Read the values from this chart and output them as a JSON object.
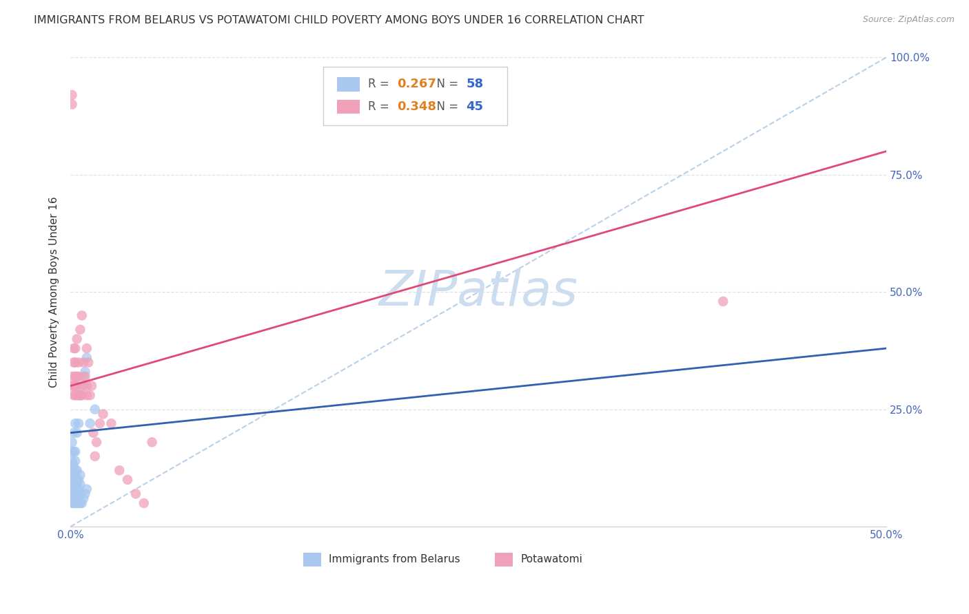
{
  "title": "IMMIGRANTS FROM BELARUS VS POTAWATOMI CHILD POVERTY AMONG BOYS UNDER 16 CORRELATION CHART",
  "source": "Source: ZipAtlas.com",
  "ylabel": "Child Poverty Among Boys Under 16",
  "xlim": [
    0.0,
    0.5
  ],
  "ylim": [
    0.0,
    1.0
  ],
  "x_ticks": [
    0.0,
    0.1,
    0.2,
    0.3,
    0.4,
    0.5
  ],
  "x_tick_labels": [
    "0.0%",
    "",
    "",
    "",
    "",
    "50.0%"
  ],
  "y_ticks": [
    0.0,
    0.25,
    0.5,
    0.75,
    1.0
  ],
  "y_tick_labels_right": [
    "",
    "25.0%",
    "50.0%",
    "75.0%",
    "100.0%"
  ],
  "series1_label": "Immigrants from Belarus",
  "series1_R": "0.267",
  "series1_N": "58",
  "series1_color": "#a8c8f0",
  "series1_trend_color": "#3060b0",
  "series2_label": "Potawatomi",
  "series2_R": "0.348",
  "series2_N": "45",
  "series2_color": "#f0a0b8",
  "series2_trend_color": "#e04878",
  "diagonal_color": "#b8d0e8",
  "watermark_text": "ZIPatlas",
  "watermark_color": "#ccddf0",
  "background_color": "#ffffff",
  "grid_color": "#e0e0e0",
  "tick_label_color": "#4466bb",
  "title_color": "#333333",
  "ylabel_color": "#333333",
  "legend_R_color": "#e08020",
  "legend_N_color": "#3366cc",
  "legend_border_color": "#cccccc",
  "s1_x": [
    0.001,
    0.001,
    0.001,
    0.001,
    0.001,
    0.001,
    0.001,
    0.001,
    0.001,
    0.001,
    0.002,
    0.002,
    0.002,
    0.002,
    0.002,
    0.002,
    0.002,
    0.002,
    0.002,
    0.002,
    0.003,
    0.003,
    0.003,
    0.003,
    0.003,
    0.003,
    0.003,
    0.003,
    0.003,
    0.003,
    0.004,
    0.004,
    0.004,
    0.004,
    0.004,
    0.004,
    0.004,
    0.004,
    0.005,
    0.005,
    0.005,
    0.005,
    0.005,
    0.006,
    0.006,
    0.006,
    0.006,
    0.006,
    0.007,
    0.007,
    0.008,
    0.008,
    0.009,
    0.009,
    0.01,
    0.01,
    0.012,
    0.015
  ],
  "s1_y": [
    0.05,
    0.06,
    0.07,
    0.08,
    0.09,
    0.1,
    0.12,
    0.14,
    0.16,
    0.18,
    0.05,
    0.06,
    0.07,
    0.08,
    0.09,
    0.1,
    0.11,
    0.13,
    0.16,
    0.2,
    0.05,
    0.06,
    0.07,
    0.08,
    0.09,
    0.1,
    0.12,
    0.14,
    0.16,
    0.22,
    0.05,
    0.06,
    0.07,
    0.08,
    0.09,
    0.1,
    0.12,
    0.2,
    0.05,
    0.06,
    0.08,
    0.1,
    0.22,
    0.05,
    0.07,
    0.09,
    0.11,
    0.28,
    0.05,
    0.3,
    0.06,
    0.32,
    0.07,
    0.33,
    0.08,
    0.36,
    0.22,
    0.25
  ],
  "s2_x": [
    0.001,
    0.001,
    0.001,
    0.001,
    0.002,
    0.002,
    0.002,
    0.002,
    0.003,
    0.003,
    0.003,
    0.003,
    0.003,
    0.004,
    0.004,
    0.004,
    0.004,
    0.005,
    0.005,
    0.005,
    0.006,
    0.006,
    0.007,
    0.007,
    0.008,
    0.008,
    0.009,
    0.01,
    0.01,
    0.01,
    0.011,
    0.012,
    0.013,
    0.014,
    0.015,
    0.016,
    0.018,
    0.02,
    0.025,
    0.03,
    0.035,
    0.04,
    0.045,
    0.05,
    0.4
  ],
  "s2_y": [
    0.3,
    0.32,
    0.9,
    0.92,
    0.28,
    0.3,
    0.35,
    0.38,
    0.28,
    0.3,
    0.32,
    0.35,
    0.38,
    0.28,
    0.3,
    0.32,
    0.4,
    0.28,
    0.32,
    0.35,
    0.28,
    0.42,
    0.28,
    0.45,
    0.3,
    0.35,
    0.32,
    0.28,
    0.3,
    0.38,
    0.35,
    0.28,
    0.3,
    0.2,
    0.15,
    0.18,
    0.22,
    0.24,
    0.22,
    0.12,
    0.1,
    0.07,
    0.05,
    0.18,
    0.48
  ],
  "trend1_x0": 0.0,
  "trend1_x1": 0.5,
  "trend1_y0": 0.2,
  "trend1_y1": 0.38,
  "trend2_x0": 0.0,
  "trend2_x1": 0.5,
  "trend2_y0": 0.3,
  "trend2_y1": 0.8
}
